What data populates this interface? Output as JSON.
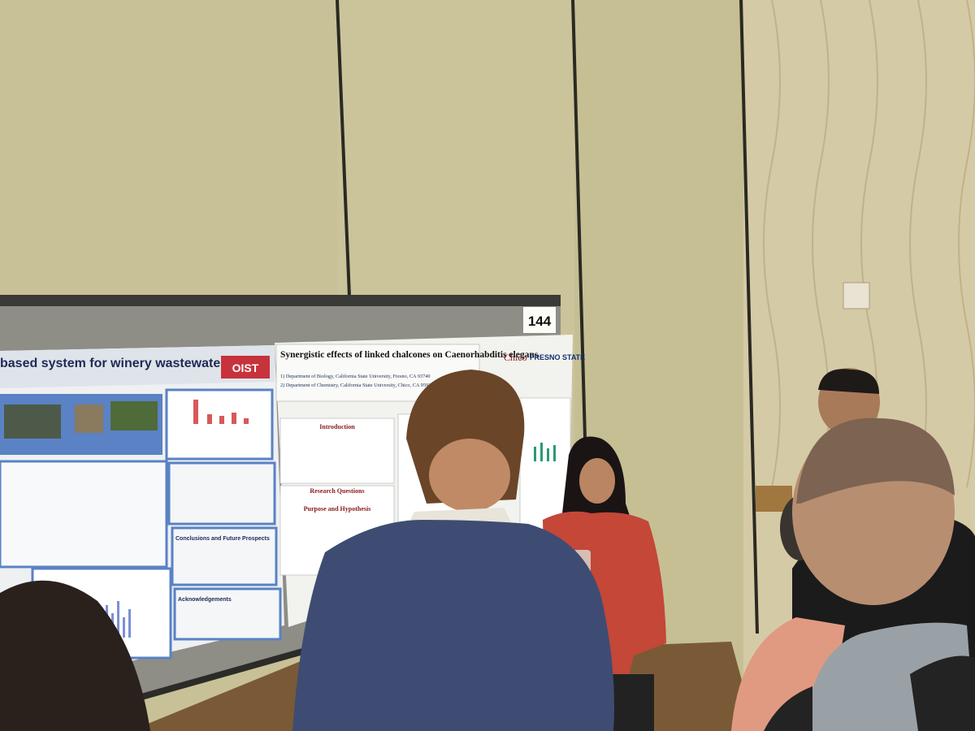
{
  "scene": {
    "booth_number": "144",
    "poster_left": {
      "title": "based system for winery wastewater reuse",
      "logo": "OIST",
      "sections": [
        "Conclusions and Future Prospects",
        "Acknowledgements"
      ]
    },
    "poster_right": {
      "title": "Synergistic effects of linked chalcones on Caenorhabditis elegans",
      "affiliations": [
        "1) Department of Biology, California State University, Fresno, CA 93740",
        "2) Department of Chemistry, California State University, Chico, CA 95929"
      ],
      "logos": [
        "Chico",
        "FRESNO STATE"
      ],
      "sections": [
        "Introduction",
        "Research Questions",
        "Purpose and Hypothesis"
      ]
    }
  }
}
